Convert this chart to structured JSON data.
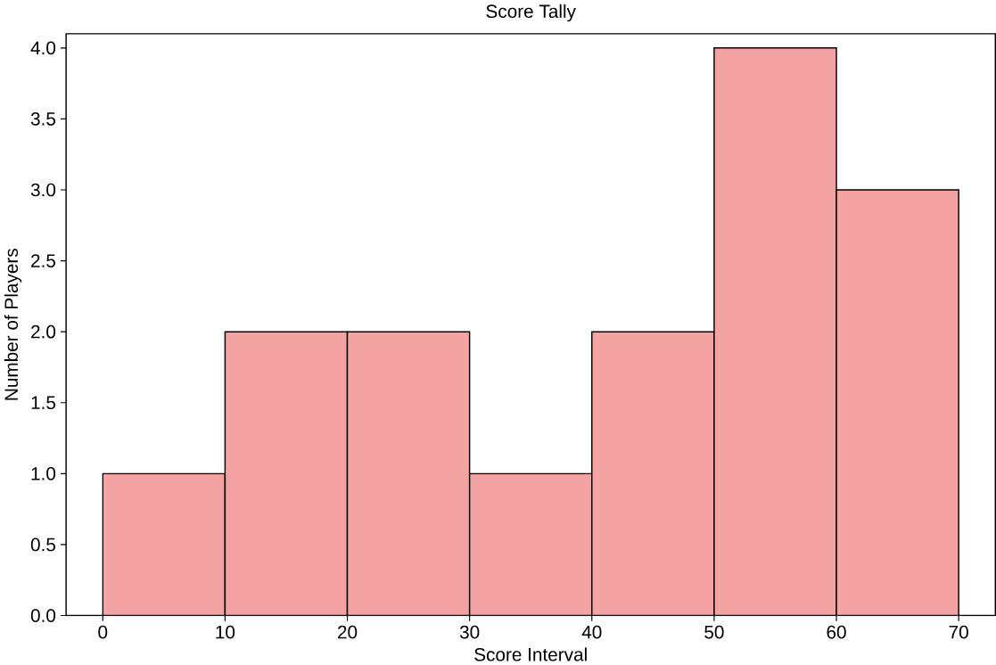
{
  "chart_data": {
    "type": "histogram",
    "title": "Score Tally",
    "xlabel": "Score Interval",
    "ylabel": "Number of Players",
    "bins": [
      0,
      10,
      20,
      30,
      40,
      50,
      60,
      70
    ],
    "values": [
      1,
      2,
      2,
      1,
      2,
      4,
      3
    ],
    "color": "#f4a3a3",
    "xlim": [
      -3,
      73
    ],
    "ylim": [
      0,
      4.1
    ],
    "xticks": [
      0,
      10,
      20,
      30,
      40,
      50,
      60,
      70
    ],
    "yticks": [
      {
        "value": 0,
        "label": "0.0"
      },
      {
        "value": 0.5,
        "label": "0.5"
      },
      {
        "value": 1,
        "label": "1.0"
      },
      {
        "value": 1.5,
        "label": "1.5"
      },
      {
        "value": 2,
        "label": "2.0"
      },
      {
        "value": 2.5,
        "label": "2.5"
      },
      {
        "value": 3,
        "label": "3.0"
      },
      {
        "value": 3.5,
        "label": "3.5"
      },
      {
        "value": 4,
        "label": "4.0"
      }
    ],
    "grid": false
  }
}
